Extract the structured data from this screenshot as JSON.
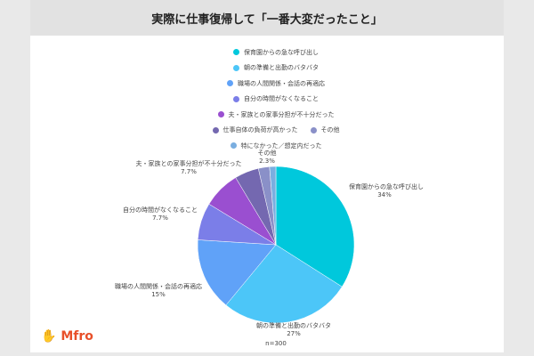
{
  "chart_data": {
    "type": "pie",
    "title": "実際に仕事復帰して「一番大変だったこと」",
    "note": "n=300",
    "slices": [
      {
        "label": "保育園からの急な呼び出し",
        "value": 34,
        "display": "34%",
        "color": "#00c8dc"
      },
      {
        "label": "朝の準備と出勤のバタバタ",
        "value": 27,
        "display": "27%",
        "color": "#4cc6f8"
      },
      {
        "label": "職場の人間関係・会話の再適応",
        "value": 15,
        "display": "15%",
        "color": "#60a2f8"
      },
      {
        "label": "自分の時間がなくなること",
        "value": 7.7,
        "display": "7.7%",
        "color": "#7b7ee8"
      },
      {
        "label": "夫・家族との家事分担が不十分だった",
        "value": 7.7,
        "display": "7.7%",
        "color": "#9a4fd0"
      },
      {
        "label": "仕事自体の負荷が高かった",
        "value": 5,
        "display": "",
        "color": "#7468b0"
      },
      {
        "label": "その他",
        "value": 2.3,
        "display": "2.3%",
        "color": "#8a90c8"
      },
      {
        "label": "特になかった／想定内だった",
        "value": 1.3,
        "display": "",
        "color": "#7aaee0"
      }
    ],
    "legend_placement": "top"
  },
  "logo": "Mfro"
}
